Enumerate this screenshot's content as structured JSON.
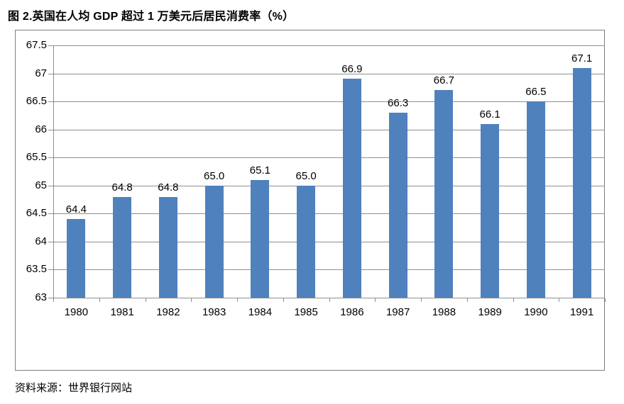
{
  "page": {
    "title": "图 2.英国在人均 GDP 超过 1 万美元后居民消费率（%）",
    "source": "资料来源：世界银行网站"
  },
  "chart_data": {
    "type": "bar",
    "title": "图 2.英国在人均 GDP 超过 1 万美元后居民消费率（%）",
    "categories": [
      "1980",
      "1981",
      "1982",
      "1983",
      "1984",
      "1985",
      "1986",
      "1987",
      "1988",
      "1989",
      "1990",
      "1991"
    ],
    "values": [
      64.4,
      64.8,
      64.8,
      65.0,
      65.1,
      65.0,
      66.9,
      66.3,
      66.7,
      66.1,
      66.5,
      67.1
    ],
    "value_label_decimals": 1,
    "xlabel": "",
    "ylabel": "",
    "ylim": [
      63,
      67.5
    ],
    "ytick_step": 0.5,
    "grid": true,
    "legend": "none",
    "data_labels": true,
    "source": "资料来源：世界银行网站",
    "colors": {
      "bar": "#4f81bd",
      "grid": "#8f8f8f",
      "axis": "#8f8f8f",
      "frame": "#7f7f7f",
      "text": "#000000"
    }
  }
}
